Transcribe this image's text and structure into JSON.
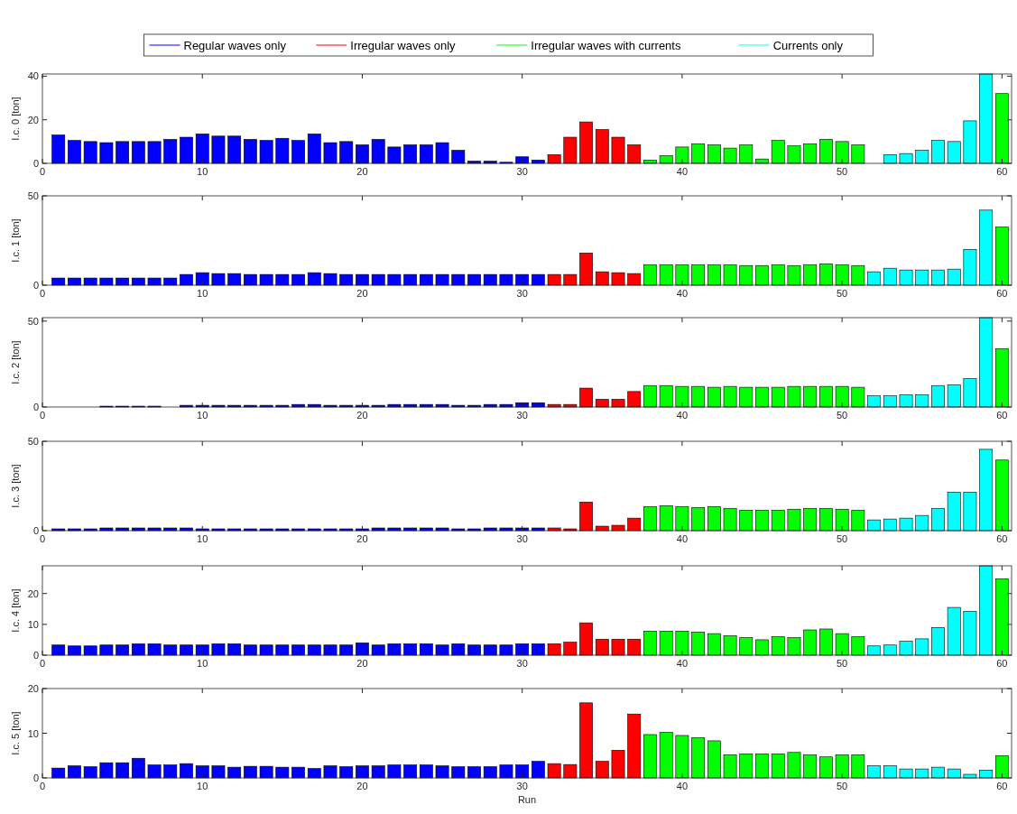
{
  "chart_data": [
    {
      "type": "bar",
      "ylabel": "I.c. 0 [ton]",
      "legend": "top",
      "xlim": [
        0,
        60.6
      ],
      "xticks": [
        0,
        10,
        20,
        30,
        40,
        50,
        60
      ],
      "ylim": [
        0,
        41
      ],
      "yticks": [
        0,
        20,
        40
      ],
      "series": [
        {
          "name": "Regular waves only",
          "color": "#0000ff",
          "x": [
            1,
            2,
            3,
            4,
            5,
            6,
            7,
            8,
            9,
            10,
            11,
            12,
            13,
            14,
            15,
            16,
            17,
            18,
            19,
            20,
            21,
            22,
            23,
            24,
            25,
            26,
            27,
            28,
            29,
            30,
            31
          ],
          "values": [
            13,
            10.5,
            10,
            9.5,
            10,
            10,
            10,
            11,
            12,
            13.5,
            12.5,
            12.5,
            11,
            10.5,
            11.5,
            10.5,
            13.5,
            9.5,
            10,
            8.5,
            11,
            7.5,
            8.5,
            8.5,
            9.5,
            6,
            1,
            1,
            0.5,
            3,
            1.5
          ]
        },
        {
          "name": "Irregular waves only",
          "color": "#ff0000",
          "x": [
            32,
            33,
            34,
            35,
            36,
            37
          ],
          "values": [
            4,
            12,
            19,
            15.5,
            12,
            8.5
          ]
        },
        {
          "name": "Irregular waves with currents",
          "color": "#00ff00",
          "x": [
            38,
            39,
            40,
            41,
            42,
            43,
            44,
            45,
            46,
            47,
            48,
            49,
            50,
            51,
            60
          ],
          "values": [
            1.5,
            3.5,
            7.5,
            9,
            8.5,
            7,
            8.5,
            2,
            10.5,
            8,
            9,
            11,
            10,
            8.5,
            32
          ]
        },
        {
          "name": "Currents only",
          "color": "#00ffff",
          "x": [
            52,
            53,
            54,
            55,
            56,
            57,
            58,
            59
          ],
          "values": [
            0,
            4,
            4.5,
            6,
            10.5,
            10,
            19.5,
            41
          ]
        }
      ]
    },
    {
      "type": "bar",
      "ylabel": "I.c. 1 [ton]",
      "xlim": [
        0,
        60.6
      ],
      "xticks": [
        0,
        10,
        20,
        30,
        40,
        50,
        60
      ],
      "ylim": [
        0,
        50
      ],
      "yticks": [
        0,
        50
      ],
      "series": [
        {
          "color": "#0000ff",
          "x": [
            1,
            2,
            3,
            4,
            5,
            6,
            7,
            8,
            9,
            10,
            11,
            12,
            13,
            14,
            15,
            16,
            17,
            18,
            19,
            20,
            21,
            22,
            23,
            24,
            25,
            26,
            27,
            28,
            29,
            30,
            31
          ],
          "values": [
            4,
            4,
            4,
            4,
            4,
            4,
            4,
            4,
            6,
            7,
            6.5,
            6.5,
            6,
            6,
            6,
            6,
            7,
            6.5,
            6,
            6,
            6,
            6,
            6,
            6,
            6,
            6,
            6,
            6,
            6,
            6,
            6
          ]
        },
        {
          "color": "#ff0000",
          "x": [
            32,
            33,
            34,
            35,
            36,
            37
          ],
          "values": [
            6,
            6,
            18,
            7.5,
            7,
            6.5
          ]
        },
        {
          "color": "#00ff00",
          "x": [
            38,
            39,
            40,
            41,
            42,
            43,
            44,
            45,
            46,
            47,
            48,
            49,
            50,
            51,
            60
          ],
          "values": [
            11.5,
            11.5,
            11.5,
            11.5,
            11.5,
            11.5,
            11,
            11,
            11.5,
            11,
            11.5,
            12,
            11.5,
            11,
            32.5
          ]
        },
        {
          "color": "#00ffff",
          "x": [
            52,
            53,
            54,
            55,
            56,
            57,
            58,
            59
          ],
          "values": [
            7.5,
            9.5,
            8.5,
            8.5,
            8.5,
            9,
            20,
            42
          ]
        }
      ]
    },
    {
      "type": "bar",
      "ylabel": "I.c. 2 [ton]",
      "xlim": [
        0,
        60.6
      ],
      "xticks": [
        0,
        10,
        20,
        30,
        40,
        50,
        60
      ],
      "ylim": [
        0,
        52
      ],
      "yticks": [
        0,
        50
      ],
      "series": [
        {
          "color": "#0000ff",
          "x": [
            1,
            2,
            3,
            4,
            5,
            6,
            7,
            8,
            9,
            10,
            11,
            12,
            13,
            14,
            15,
            16,
            17,
            18,
            19,
            20,
            21,
            22,
            23,
            24,
            25,
            26,
            27,
            28,
            29,
            30,
            31
          ],
          "values": [
            0,
            0,
            0,
            0.5,
            0.5,
            0.5,
            0.5,
            0,
            1,
            1,
            1,
            1,
            1,
            1,
            1,
            1.5,
            1.5,
            1,
            1,
            1,
            1,
            1.5,
            1.5,
            1.5,
            1.5,
            1,
            1,
            1.5,
            1.5,
            2.5,
            2.5
          ]
        },
        {
          "color": "#ff0000",
          "x": [
            32,
            33,
            34,
            35,
            36,
            37
          ],
          "values": [
            1.5,
            1.5,
            11,
            4.5,
            4.5,
            9
          ]
        },
        {
          "color": "#00ff00",
          "x": [
            38,
            39,
            40,
            41,
            42,
            43,
            44,
            45,
            46,
            47,
            48,
            49,
            50,
            51,
            60
          ],
          "values": [
            12.5,
            12.5,
            12,
            12,
            11.5,
            12,
            11.5,
            11.5,
            11.5,
            12,
            12,
            12,
            12,
            11.5,
            34
          ]
        },
        {
          "color": "#00ffff",
          "x": [
            52,
            53,
            54,
            55,
            56,
            57,
            58,
            59
          ],
          "values": [
            6.5,
            6.5,
            7,
            7,
            12.5,
            13,
            16.5,
            52
          ]
        }
      ]
    },
    {
      "type": "bar",
      "ylabel": "I.c. 3 [ton]",
      "xlim": [
        0,
        60.6
      ],
      "xticks": [
        0,
        10,
        20,
        30,
        40,
        50,
        60
      ],
      "ylim": [
        0,
        50
      ],
      "yticks": [
        0,
        50
      ],
      "series": [
        {
          "color": "#0000ff",
          "x": [
            1,
            2,
            3,
            4,
            5,
            6,
            7,
            8,
            9,
            10,
            11,
            12,
            13,
            14,
            15,
            16,
            17,
            18,
            19,
            20,
            21,
            22,
            23,
            24,
            25,
            26,
            27,
            28,
            29,
            30,
            31
          ],
          "values": [
            1,
            1,
            1,
            1.5,
            1.5,
            1.5,
            1.5,
            1.5,
            1.5,
            1,
            1,
            1,
            1,
            1,
            1,
            1,
            1,
            1,
            1,
            1,
            1.5,
            1.5,
            1.5,
            1.5,
            1.5,
            1,
            1,
            1.5,
            1.5,
            1.5,
            1.5
          ]
        },
        {
          "color": "#ff0000",
          "x": [
            32,
            33,
            34,
            35,
            36,
            37
          ],
          "values": [
            1.5,
            1,
            16,
            2.5,
            3,
            7
          ]
        },
        {
          "color": "#00ff00",
          "x": [
            38,
            39,
            40,
            41,
            42,
            43,
            44,
            45,
            46,
            47,
            48,
            49,
            50,
            51,
            60
          ],
          "values": [
            13.5,
            14,
            13.5,
            13,
            13.5,
            12.5,
            11.5,
            11.5,
            11.5,
            12,
            12.5,
            12.5,
            12,
            11.5,
            39.5
          ]
        },
        {
          "color": "#00ffff",
          "x": [
            52,
            53,
            54,
            55,
            56,
            57,
            58,
            59
          ],
          "values": [
            6,
            6.5,
            7,
            8.5,
            12.5,
            21.5,
            21.5,
            45.5
          ]
        }
      ]
    },
    {
      "type": "bar",
      "ylabel": "I.c. 4 [ton]",
      "xlim": [
        0,
        60.6
      ],
      "xticks": [
        0,
        10,
        20,
        30,
        40,
        50,
        60
      ],
      "ylim": [
        0,
        29
      ],
      "yticks": [
        0,
        10,
        20
      ],
      "series": [
        {
          "color": "#0000ff",
          "x": [
            1,
            2,
            3,
            4,
            5,
            6,
            7,
            8,
            9,
            10,
            11,
            12,
            13,
            14,
            15,
            16,
            17,
            18,
            19,
            20,
            21,
            22,
            23,
            24,
            25,
            26,
            27,
            28,
            29,
            30,
            31
          ],
          "values": [
            3.3,
            3,
            3,
            3.3,
            3.3,
            3.7,
            3.7,
            3.3,
            3.3,
            3.3,
            3.7,
            3.7,
            3.3,
            3.3,
            3.3,
            3.3,
            3.3,
            3.3,
            3.3,
            4,
            3.3,
            3.7,
            3.7,
            3.7,
            3.3,
            3.7,
            3.3,
            3.3,
            3.3,
            3.7,
            3.7
          ]
        },
        {
          "color": "#ff0000",
          "x": [
            32,
            33,
            34,
            35,
            36,
            37
          ],
          "values": [
            3.7,
            4.2,
            10.5,
            5.2,
            5.2,
            5.2
          ]
        },
        {
          "color": "#00ff00",
          "x": [
            38,
            39,
            40,
            41,
            42,
            43,
            44,
            45,
            46,
            47,
            48,
            49,
            50,
            51,
            60
          ],
          "values": [
            7.8,
            7.8,
            7.8,
            7.5,
            7,
            6.3,
            5.7,
            5,
            6,
            5.7,
            8.2,
            8.5,
            7,
            6,
            24.8
          ]
        },
        {
          "color": "#00ffff",
          "x": [
            52,
            53,
            54,
            55,
            56,
            57,
            58,
            59
          ],
          "values": [
            3,
            3.3,
            4.5,
            5.3,
            9,
            15.5,
            14.2,
            29
          ]
        }
      ]
    },
    {
      "type": "bar",
      "ylabel": "I.c. 5 [ton]",
      "xlabel": "Run",
      "xlim": [
        0,
        60.6
      ],
      "xticks": [
        0,
        10,
        20,
        30,
        40,
        50,
        60
      ],
      "ylim": [
        0,
        20
      ],
      "yticks": [
        0,
        10,
        20
      ],
      "series": [
        {
          "color": "#0000ff",
          "x": [
            1,
            2,
            3,
            4,
            5,
            6,
            7,
            8,
            9,
            10,
            11,
            12,
            13,
            14,
            15,
            16,
            17,
            18,
            19,
            20,
            21,
            22,
            23,
            24,
            25,
            26,
            27,
            28,
            29,
            30,
            31
          ],
          "values": [
            2.2,
            2.7,
            2.5,
            3.4,
            3.4,
            4.4,
            2.9,
            2.9,
            3.2,
            2.7,
            2.7,
            2.4,
            2.6,
            2.6,
            2.4,
            2.4,
            2.1,
            2.7,
            2.5,
            2.7,
            2.7,
            2.9,
            2.9,
            2.9,
            2.7,
            2.5,
            2.5,
            2.5,
            2.9,
            2.9,
            3.7
          ]
        },
        {
          "color": "#ff0000",
          "x": [
            32,
            33,
            34,
            35,
            36,
            37
          ],
          "values": [
            3.2,
            3,
            16.8,
            3.7,
            6.2,
            14.3
          ]
        },
        {
          "color": "#00ff00",
          "x": [
            38,
            39,
            40,
            41,
            42,
            43,
            44,
            45,
            46,
            47,
            48,
            49,
            50,
            51,
            60
          ],
          "values": [
            9.7,
            10.2,
            9.5,
            9,
            8.3,
            5.2,
            5.4,
            5.4,
            5.4,
            5.7,
            5.2,
            4.7,
            5.2,
            5.2,
            5
          ]
        },
        {
          "color": "#00ffff",
          "x": [
            52,
            53,
            54,
            55,
            56,
            57,
            58,
            59
          ],
          "values": [
            2.7,
            2.7,
            2,
            2,
            2.4,
            2,
            0.8,
            1.7
          ]
        }
      ]
    }
  ]
}
